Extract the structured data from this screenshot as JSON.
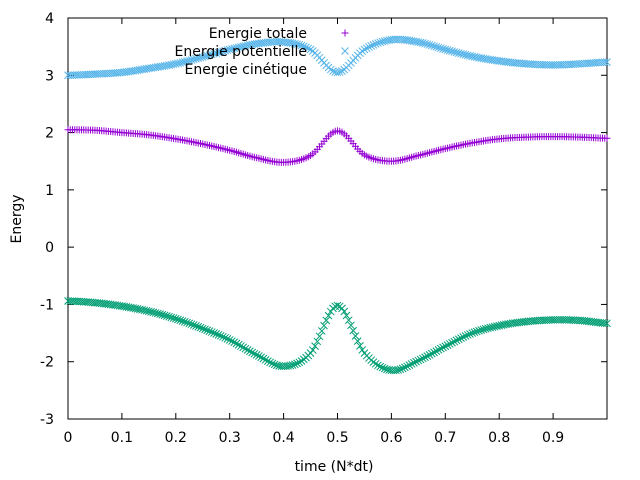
{
  "chart_data": {
    "type": "scatter",
    "title": "",
    "xlabel": "time (N*dt)",
    "ylabel": "Energy",
    "xlim": [
      0,
      1.0
    ],
    "ylim": [
      -3,
      4
    ],
    "x_ticks": [
      "0",
      "0.1",
      "0.2",
      "0.3",
      "0.4",
      "0.5",
      "0.6",
      "0.7",
      "0.8",
      "0.9"
    ],
    "y_ticks": [
      "-3",
      "-2",
      "-1",
      "0",
      "1",
      "2",
      "3",
      "4"
    ],
    "grid": false,
    "legend_position": "top-center",
    "series": [
      {
        "name": "Energie totale",
        "marker": "plus",
        "color": "#9400d3",
        "x": [
          0,
          0.05,
          0.1,
          0.15,
          0.2,
          0.25,
          0.3,
          0.35,
          0.4,
          0.45,
          0.5,
          0.55,
          0.6,
          0.65,
          0.7,
          0.75,
          0.8,
          0.85,
          0.9,
          0.95,
          1.0
        ],
        "y": [
          2.05,
          2.04,
          2.0,
          1.96,
          1.89,
          1.8,
          1.69,
          1.56,
          1.48,
          1.6,
          2.03,
          1.61,
          1.5,
          1.6,
          1.72,
          1.82,
          1.89,
          1.92,
          1.93,
          1.92,
          1.9
        ]
      },
      {
        "name": "Energie potentielle",
        "marker": "cross",
        "color": "#56b4e9",
        "x": [
          0,
          0.05,
          0.1,
          0.15,
          0.2,
          0.25,
          0.3,
          0.35,
          0.4,
          0.45,
          0.5,
          0.55,
          0.6,
          0.65,
          0.7,
          0.75,
          0.8,
          0.85,
          0.9,
          0.95,
          1.0
        ],
        "y": [
          3.0,
          3.02,
          3.05,
          3.12,
          3.2,
          3.32,
          3.45,
          3.55,
          3.58,
          3.45,
          3.05,
          3.45,
          3.62,
          3.58,
          3.45,
          3.33,
          3.25,
          3.2,
          3.18,
          3.2,
          3.23
        ]
      },
      {
        "name": "Energie cinétique",
        "marker": "cross",
        "color": "#009e73",
        "x": [
          0,
          0.05,
          0.1,
          0.15,
          0.2,
          0.25,
          0.3,
          0.35,
          0.4,
          0.45,
          0.5,
          0.55,
          0.6,
          0.65,
          0.7,
          0.75,
          0.8,
          0.85,
          0.9,
          0.95,
          1.0
        ],
        "y": [
          -0.94,
          -0.97,
          -1.03,
          -1.12,
          -1.25,
          -1.42,
          -1.62,
          -1.88,
          -2.08,
          -1.85,
          -1.02,
          -1.85,
          -2.15,
          -1.98,
          -1.73,
          -1.5,
          -1.37,
          -1.3,
          -1.27,
          -1.28,
          -1.33
        ]
      }
    ]
  }
}
